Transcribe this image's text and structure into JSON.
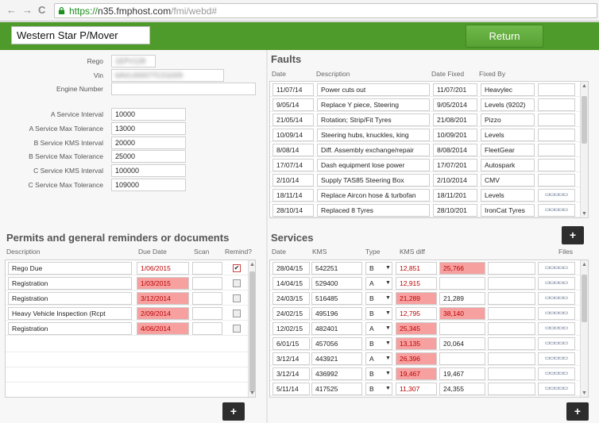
{
  "browser": {
    "back": "←",
    "forward": "→",
    "reload": "C",
    "url_scheme": "https://",
    "url_host": "n35.fmphost.com",
    "url_path": "/fmi/webd#"
  },
  "header": {
    "vehicle_name": "Western Star P/Mover",
    "return_label": "Return"
  },
  "vehicle": {
    "fields": [
      {
        "label": "Rego",
        "value": "1EPV128"
      },
      {
        "label": "Vin",
        "value": "6AVL000077CO1009"
      },
      {
        "label": "Engine Number",
        "value": ""
      }
    ],
    "service_fields": [
      {
        "label": "A Service Interval",
        "value": "10000"
      },
      {
        "label": "A Service Max Tolerance",
        "value": "13000"
      },
      {
        "label": "B Service KMS Interval",
        "value": "20000"
      },
      {
        "label": "B Service Max Tolerance",
        "value": "25000"
      },
      {
        "label": "C Service KMS Interval",
        "value": "100000"
      },
      {
        "label": "C Service Max Tolerance",
        "value": "109000"
      }
    ]
  },
  "faults": {
    "title": "Faults",
    "columns": [
      "Date",
      "Description",
      "Date Fixed",
      "Fixed By"
    ],
    "rows": [
      {
        "date": "11/07/14",
        "desc": "Power cuts out",
        "fixed": "11/07/201",
        "by": "Heavylec",
        "file": false
      },
      {
        "date": "9/05/14",
        "desc": "Replace Y piece, Steering",
        "fixed": "9/05/2014",
        "by": "Levels (9202)",
        "file": false
      },
      {
        "date": "21/05/14",
        "desc": "Rotation; Strip/Fit Tyres",
        "fixed": "21/08/201",
        "by": "Pizzo",
        "file": false
      },
      {
        "date": "10/09/14",
        "desc": "Steering hubs, knuckles, king",
        "fixed": "10/09/201",
        "by": "Levels",
        "file": false
      },
      {
        "date": "8/08/14",
        "desc": "Diff. Assembly exchange/repair",
        "fixed": "8/08/2014",
        "by": "FleetGear",
        "file": false
      },
      {
        "date": "17/07/14",
        "desc": "Dash equipment lose power",
        "fixed": "17/07/201",
        "by": "Autospark",
        "file": false
      },
      {
        "date": "2/10/14",
        "desc": "Supply TAS85 Steering Box",
        "fixed": "2/10/2014",
        "by": "CMV",
        "file": false
      },
      {
        "date": "18/11/14",
        "desc": "Replace Aircon hose & turbofan",
        "fixed": "18/11/201",
        "by": "Levels",
        "file": true
      },
      {
        "date": "28/10/14",
        "desc": "Replaced 8 Tyres",
        "fixed": "28/10/201",
        "by": "IronCat Tyres",
        "file": true
      }
    ],
    "add_label": "+"
  },
  "permits": {
    "title": "Permits and general reminders or documents",
    "columns": [
      "Description",
      "Due Date",
      "Scan",
      "Remind?"
    ],
    "rows": [
      {
        "desc": "Rego Due",
        "due": "1/06/2015",
        "checked": true
      },
      {
        "desc": "Registration",
        "due": "1/03/2015",
        "checked": false
      },
      {
        "desc": "Registration",
        "due": "3/12/2014",
        "checked": false
      },
      {
        "desc": "Heavy Vehicle Inspection (Rcpt",
        "due": "2/09/2014",
        "checked": false
      },
      {
        "desc": "Registration",
        "due": "4/06/2014",
        "checked": false
      }
    ],
    "add_label": "+"
  },
  "services": {
    "title": "Services",
    "columns": [
      "Date",
      "KMS",
      "Type",
      "KMS diff",
      "Files"
    ],
    "rows": [
      {
        "date": "28/04/15",
        "kms": "542251",
        "type": "B",
        "diff": "12,851",
        "diff2": "25,766",
        "red1": false,
        "red2": true
      },
      {
        "date": "14/04/15",
        "kms": "529400",
        "type": "A",
        "diff": "12,915",
        "diff2": "",
        "red1": false,
        "red2": false
      },
      {
        "date": "24/03/15",
        "kms": "516485",
        "type": "B",
        "diff": "21,289",
        "diff2": "21,289",
        "red1": true,
        "red2": false
      },
      {
        "date": "24/02/15",
        "kms": "495196",
        "type": "B",
        "diff": "12,795",
        "diff2": "38,140",
        "red1": false,
        "red2": true
      },
      {
        "date": "12/02/15",
        "kms": "482401",
        "type": "A",
        "diff": "25,345",
        "diff2": "",
        "red1": true,
        "red2": false
      },
      {
        "date": "6/01/15",
        "kms": "457056",
        "type": "B",
        "diff": "13,135",
        "diff2": "20,064",
        "red1": true,
        "red2": false
      },
      {
        "date": "3/12/14",
        "kms": "443921",
        "type": "A",
        "diff": "26,396",
        "diff2": "",
        "red1": true,
        "red2": false
      },
      {
        "date": "3/12/14",
        "kms": "436992",
        "type": "B",
        "diff": "19,467",
        "diff2": "19,467",
        "red1": true,
        "red2": false
      },
      {
        "date": "5/11/14",
        "kms": "417525",
        "type": "B",
        "diff": "11,307",
        "diff2": "24,355",
        "red1": false,
        "red2": false
      }
    ],
    "add_label": "+"
  },
  "colors": {
    "header_green": "#4e9a2b",
    "button_green": "#5faa3a",
    "alert_red": "#f7a0a0",
    "add_button": "#2d2d2d"
  }
}
